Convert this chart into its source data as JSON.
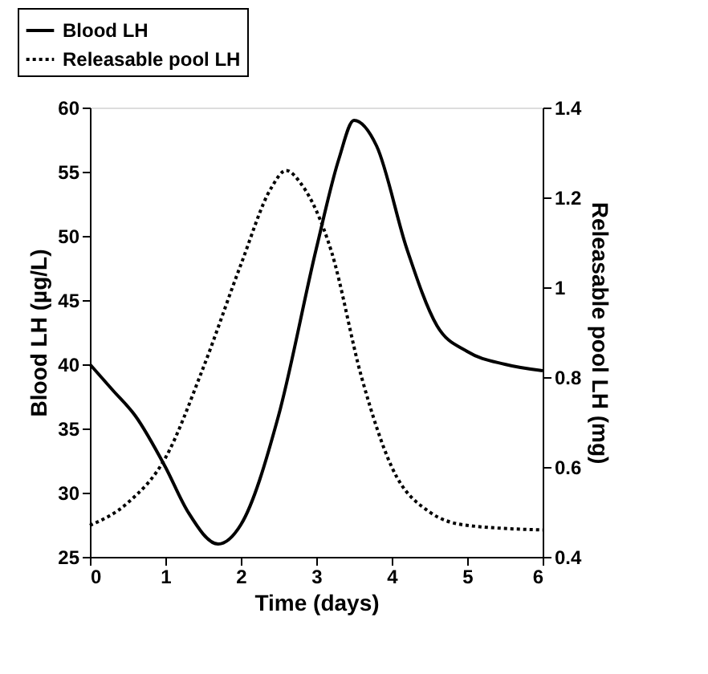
{
  "chart_data": {
    "type": "line",
    "xlabel": "Time (days)",
    "ylabel": "Blood LH (µg/L)",
    "y2label": "Releasable pool LH (mg)",
    "xlim": [
      0,
      6
    ],
    "xticks": [
      0,
      1,
      2,
      3,
      4,
      5,
      6
    ],
    "ylim": [
      25,
      60
    ],
    "yticks": [
      25,
      30,
      35,
      40,
      45,
      50,
      55,
      60
    ],
    "y2lim": [
      0.4,
      1.4
    ],
    "y2ticks": [
      0.4,
      0.6,
      0.8,
      1,
      1.2,
      1.4
    ],
    "legend": "top left",
    "series": [
      {
        "name": "Blood LH",
        "color": "#000000",
        "line_style": "solid",
        "x": [
          0,
          0.3,
          0.6,
          1,
          1.3,
          1.7,
          2,
          2.5,
          3,
          3.3,
          3.5,
          3.8,
          4.2,
          4.6,
          5,
          5.5,
          6
        ],
        "values": [
          40,
          38,
          36,
          32,
          28.5,
          26,
          27.5,
          36,
          49,
          56,
          59,
          57,
          49,
          43,
          41,
          40,
          39.5
        ]
      },
      {
        "name": "Releasable pool LH",
        "color": "#000000",
        "line_style": "dotted",
        "axis": "y2",
        "x": [
          0,
          0.5,
          1,
          1.5,
          2,
          2.4,
          2.6,
          2.8,
          3.2,
          3.6,
          4,
          4.5,
          5,
          6
        ],
        "values": [
          0.47,
          0.52,
          0.62,
          0.82,
          1.05,
          1.22,
          1.26,
          1.23,
          1.08,
          0.8,
          0.6,
          0.5,
          0.47,
          0.46
        ]
      }
    ]
  }
}
